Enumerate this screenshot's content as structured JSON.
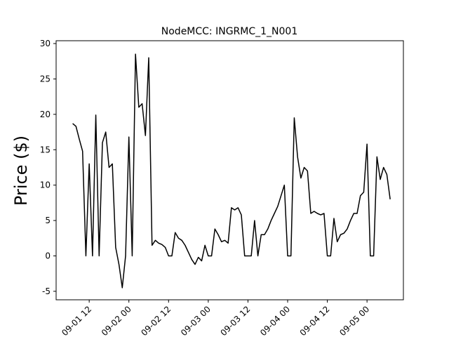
{
  "chart_data": {
    "type": "line",
    "title": "NodeMCC: INGRMC_1_N001",
    "y_label": "Price ($)",
    "color": "#000000",
    "x": [
      "09-01 07",
      "09-01 08",
      "09-01 09",
      "09-01 10",
      "09-01 11",
      "09-01 12",
      "09-01 13",
      "09-01 14",
      "09-01 15",
      "09-01 16",
      "09-01 17",
      "09-01 18",
      "09-01 19",
      "09-01 20",
      "09-01 21",
      "09-01 22",
      "09-01 23",
      "09-02 00",
      "09-02 01",
      "09-02 02",
      "09-02 03",
      "09-02 04",
      "09-02 05",
      "09-02 06",
      "09-02 07",
      "09-02 08",
      "09-02 09",
      "09-02 10",
      "09-02 11",
      "09-02 12",
      "09-02 13",
      "09-02 14",
      "09-02 15",
      "09-02 16",
      "09-02 17",
      "09-02 18",
      "09-02 19",
      "09-02 20",
      "09-02 21",
      "09-02 22",
      "09-02 23",
      "09-03 00",
      "09-03 01",
      "09-03 02",
      "09-03 03",
      "09-03 04",
      "09-03 05",
      "09-03 06",
      "09-03 07",
      "09-03 08",
      "09-03 09",
      "09-03 10",
      "09-03 11",
      "09-03 12",
      "09-03 13",
      "09-03 14",
      "09-03 15",
      "09-03 16",
      "09-03 17",
      "09-03 18",
      "09-03 19",
      "09-03 20",
      "09-03 21",
      "09-03 22",
      "09-03 23",
      "09-04 00",
      "09-04 01",
      "09-04 02",
      "09-04 03",
      "09-04 04",
      "09-04 05",
      "09-04 06",
      "09-04 07",
      "09-04 08",
      "09-04 09",
      "09-04 10",
      "09-04 11",
      "09-04 12",
      "09-04 13",
      "09-04 14",
      "09-04 15",
      "09-04 16",
      "09-04 17",
      "09-04 18",
      "09-04 19",
      "09-04 20",
      "09-04 21",
      "09-04 22",
      "09-04 23",
      "09-05 00",
      "09-05 01",
      "09-05 02",
      "09-05 03",
      "09-05 04",
      "09-05 05",
      "09-05 06",
      "09-05 07"
    ],
    "values": [
      18.7,
      18.3,
      16.5,
      14.8,
      0,
      13,
      0,
      19.9,
      0,
      16,
      17.5,
      12.5,
      13,
      1.2,
      -1.2,
      -4.5,
      0,
      16.8,
      0,
      28.5,
      21,
      21.5,
      17,
      28,
      1.5,
      2.2,
      1.8,
      1.6,
      1.2,
      0,
      0,
      3.3,
      2.5,
      2.2,
      1.5,
      0.5,
      -0.5,
      -1.2,
      -0.2,
      -0.7,
      1.5,
      0,
      0,
      3.8,
      3,
      2,
      2.2,
      1.8,
      6.8,
      6.5,
      6.8,
      5.8,
      0,
      0,
      0,
      5,
      0,
      3,
      3,
      3.8,
      5,
      6,
      7,
      8.5,
      10,
      0,
      0,
      19.5,
      14,
      11,
      12.5,
      12,
      6,
      6.3,
      6,
      5.8,
      6,
      0,
      0,
      5.3,
      2,
      3,
      3.2,
      3.8,
      5,
      6,
      6,
      8.5,
      9,
      15.8,
      0,
      0,
      14,
      10.8,
      12.5,
      11.5,
      8
    ],
    "xlim": [
      "09-01 02",
      "09-05 11"
    ],
    "xticks": [
      "09-01 12",
      "09-02 00",
      "09-02 12",
      "09-03 00",
      "09-03 12",
      "09-04 00",
      "09-04 12",
      "09-05 00"
    ],
    "ylim": [
      -6.2,
      30.4
    ],
    "yticks": [
      -5,
      0,
      5,
      10,
      15,
      20,
      25,
      30
    ]
  }
}
